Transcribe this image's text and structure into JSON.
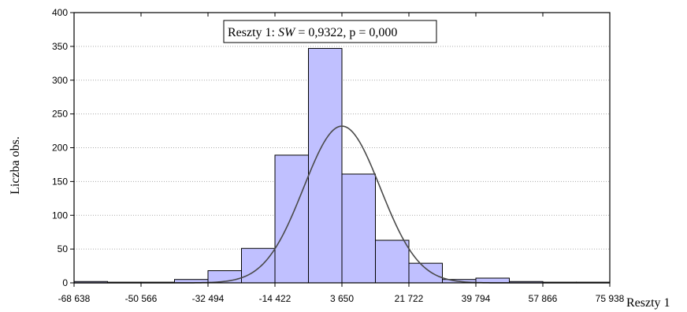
{
  "chart_data": {
    "type": "bar",
    "xlabel": "Reszty 1",
    "ylabel": "Liczba obs.",
    "ylim": [
      0,
      400
    ],
    "yticks": [
      0,
      50,
      100,
      150,
      200,
      250,
      300,
      350,
      400
    ],
    "xticks": [
      -68638,
      -50566,
      -32494,
      -14422,
      3650,
      21722,
      39794,
      57866,
      75938
    ],
    "xtick_labels": [
      "-68 638",
      "-50 566",
      "-32 494",
      "-14 422",
      "3 650",
      "21 722",
      "39 794",
      "57 866",
      "75 938"
    ],
    "xlim": [
      -68638,
      75938
    ],
    "bin_width": 9036,
    "bin_start": -68638,
    "values": [
      2,
      1,
      1,
      5,
      18,
      51,
      189,
      347,
      161,
      63,
      29,
      5,
      7,
      2,
      1,
      1
    ],
    "grid": "horizontal dotted",
    "annotation": {
      "series": "Reszty 1",
      "stat_name": "SW",
      "stat_value": "0,9322",
      "p_text": "p = 0,000"
    },
    "fit_curve": {
      "type": "normal",
      "mean": 3650,
      "peak": 232
    }
  }
}
